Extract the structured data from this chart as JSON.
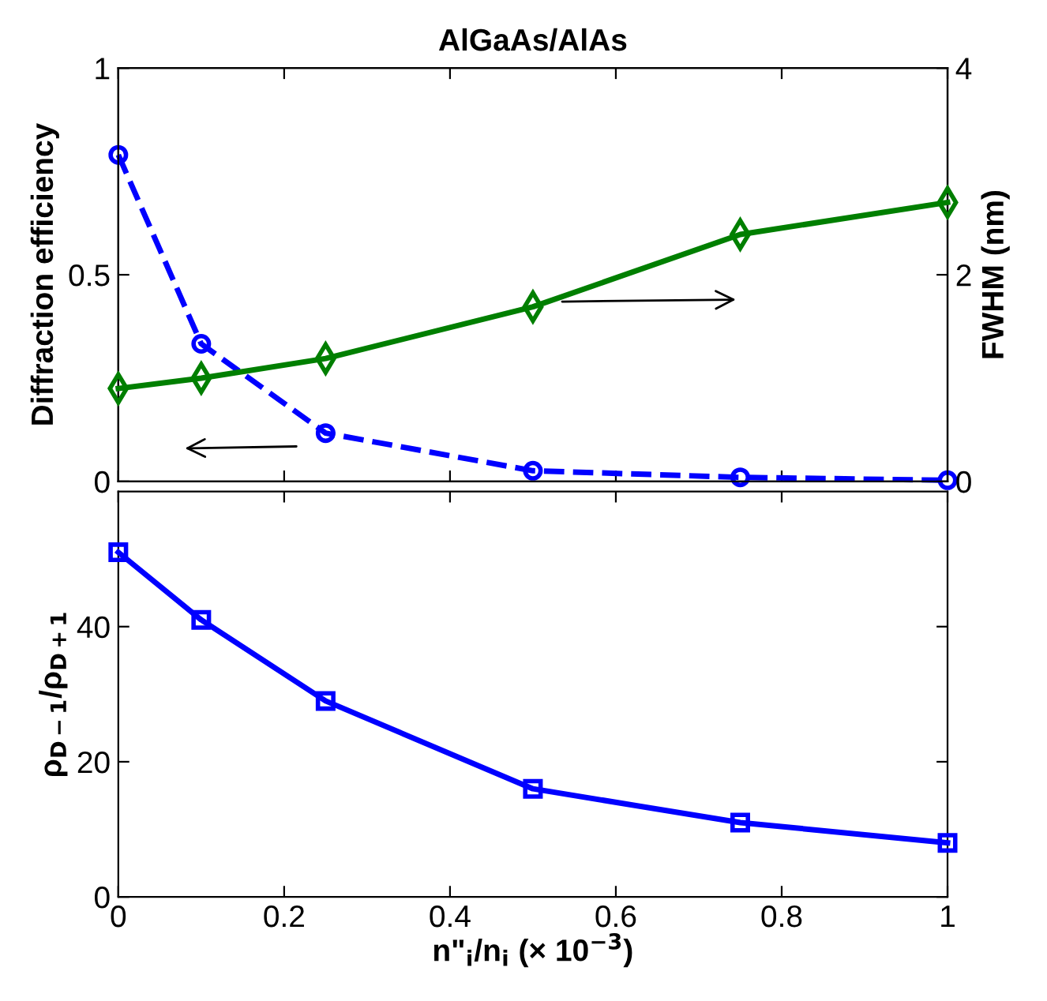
{
  "chart_data": [
    {
      "type": "line",
      "title": "AlGaAs/AlAs",
      "ylabel": "Diffraction efficiency",
      "y2label": "FWHM (nm)",
      "x": [
        0,
        0.1,
        0.25,
        0.5,
        0.75,
        1
      ],
      "series": [
        {
          "color": "#0000ff",
          "values": [
            0.79,
            0.333,
            0.117,
            0.026,
            0.01,
            0.003
          ],
          "marker": "circle",
          "line_style": "dashed"
        },
        {
          "color": "#007f00",
          "values": [
            0.9,
            1.0,
            1.19,
            1.69,
            2.39,
            2.7
          ],
          "marker": "diamond",
          "line_style": "solid",
          "axis": "y2"
        }
      ],
      "xlim": [
        0,
        1
      ],
      "xticks": [
        0,
        0.2,
        0.4,
        0.6,
        0.8,
        1
      ],
      "ylim": [
        0,
        1
      ],
      "yticks": [
        0,
        0.5,
        1
      ],
      "y2lim": [
        0,
        4
      ],
      "y2ticks": [
        0,
        2,
        4
      ],
      "tick_labels": "y",
      "grid": false,
      "legend": false
    },
    {
      "type": "line",
      "xlabel": "n\"$_{i}$/n$_{i}$ (× 10$^{−3}$)",
      "ylabel": "ρ$_{D−1}$/ρ$_{D+1}$",
      "x": [
        0,
        0.1,
        0.25,
        0.5,
        0.75,
        1
      ],
      "series": [
        {
          "color": "#0000ff",
          "values": [
            51,
            41,
            29,
            16,
            11,
            8
          ],
          "marker": "square",
          "line_style": "solid"
        }
      ],
      "xlim": [
        0,
        1
      ],
      "xticks": [
        0,
        0.2,
        0.4,
        0.6,
        0.8,
        1
      ],
      "ylim": [
        0,
        60
      ],
      "yticks": [
        0,
        20,
        40
      ],
      "grid": false,
      "legend": false
    }
  ]
}
